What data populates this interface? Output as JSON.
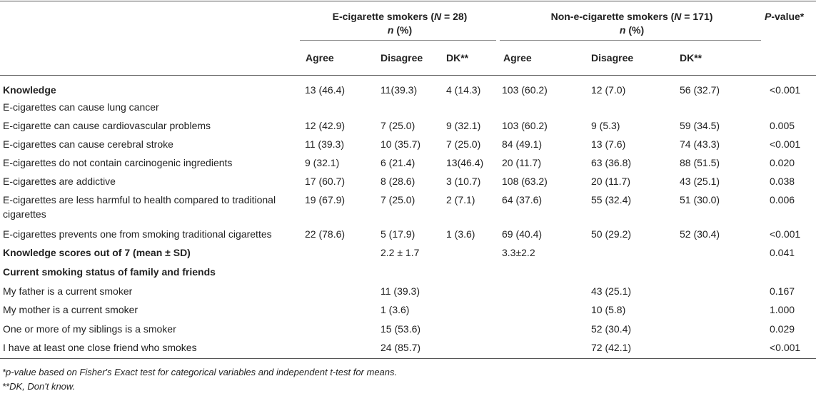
{
  "header": {
    "group1_title": "E-cigarette smokers (",
    "group1_n": "N",
    "group1_count": " = 28)",
    "group2_title": "Non-e-cigarette smokers (",
    "group2_n": "N",
    "group2_count": " = 171)",
    "n_pct_n": "n",
    "n_pct_rest": " (%)",
    "pvalue_p": "P",
    "pvalue_rest": "-value*",
    "sub": [
      "Agree",
      "Disagree",
      "DK**",
      "Agree",
      "Disagree",
      "DK**"
    ]
  },
  "rows": [
    {
      "label": "Knowledge",
      "bold": true,
      "cells": [
        "13 (46.4)",
        "11(39.3)",
        "4 (14.3)",
        "103 (60.2)",
        "12 (7.0)",
        "56 (32.7)"
      ],
      "p": "<0.001"
    },
    {
      "label": "E-cigarettes can cause lung cancer",
      "cells": [
        "",
        "",
        "",
        "",
        "",
        ""
      ],
      "p": ""
    },
    {
      "label": "E-cigarette can cause cardiovascular problems",
      "cells": [
        "12 (42.9)",
        "7 (25.0)",
        "9 (32.1)",
        "103 (60.2)",
        "9 (5.3)",
        "59 (34.5)"
      ],
      "p": "0.005"
    },
    {
      "label": "E-cigarettes can cause cerebral stroke",
      "cells": [
        "11 (39.3)",
        "10 (35.7)",
        "7 (25.0)",
        "84 (49.1)",
        "13 (7.6)",
        "74 (43.3)"
      ],
      "p": "<0.001"
    },
    {
      "label": "E-cigarettes do not contain carcinogenic ingredients",
      "cells": [
        "9 (32.1)",
        "6 (21.4)",
        "13(46.4)",
        "20 (11.7)",
        "63 (36.8)",
        "88 (51.5)"
      ],
      "p": "0.020"
    },
    {
      "label": "E-cigarettes are addictive",
      "cells": [
        "17 (60.7)",
        "8 (28.6)",
        "3 (10.7)",
        "108 (63.2)",
        "20 (11.7)",
        "43 (25.1)"
      ],
      "p": "0.038"
    },
    {
      "label": "E-cigarettes are less harmful to health compared to traditional",
      "label2": "cigarettes",
      "cells": [
        "19 (67.9)",
        "7 (25.0)",
        "2 (7.1)",
        "64 (37.6)",
        "55 (32.4)",
        "51 (30.0)"
      ],
      "p": "0.006"
    },
    {
      "label": "E-cigarettes prevents one from smoking traditional cigarettes",
      "cells": [
        "22 (78.6)",
        "5 (17.9)",
        "1 (3.6)",
        "69 (40.4)",
        "50 (29.2)",
        "52 (30.4)"
      ],
      "p": "<0.001"
    },
    {
      "label": "Knowledge scores out of 7 (mean ± SD)",
      "bold": true,
      "mid1": "2.2 ± 1.7",
      "mid2": "3.3±2.2",
      "p": "0.041"
    },
    {
      "label": "Current smoking status of family and friends",
      "bold": true,
      "p": ""
    },
    {
      "label": "My father is a current smoker",
      "mid1": "11 (39.3)",
      "mid2": "43 (25.1)",
      "p": "0.167"
    },
    {
      "label": "My mother is a current smoker",
      "mid1": "1 (3.6)",
      "mid2": "10 (5.8)",
      "p": "1.000"
    },
    {
      "label": "One or more of my siblings is a smoker",
      "mid1": "15 (53.6)",
      "mid2": "52 (30.4)",
      "p": "0.029"
    },
    {
      "label": "I have at least one close friend who smokes",
      "mid1": "24 (85.7)",
      "mid2": "72 (42.1)",
      "p": "<0.001"
    }
  ],
  "footnotes": [
    "*p-value based on Fisher's Exact test for categorical variables and independent t-test for means.",
    "**DK, Don't know."
  ]
}
